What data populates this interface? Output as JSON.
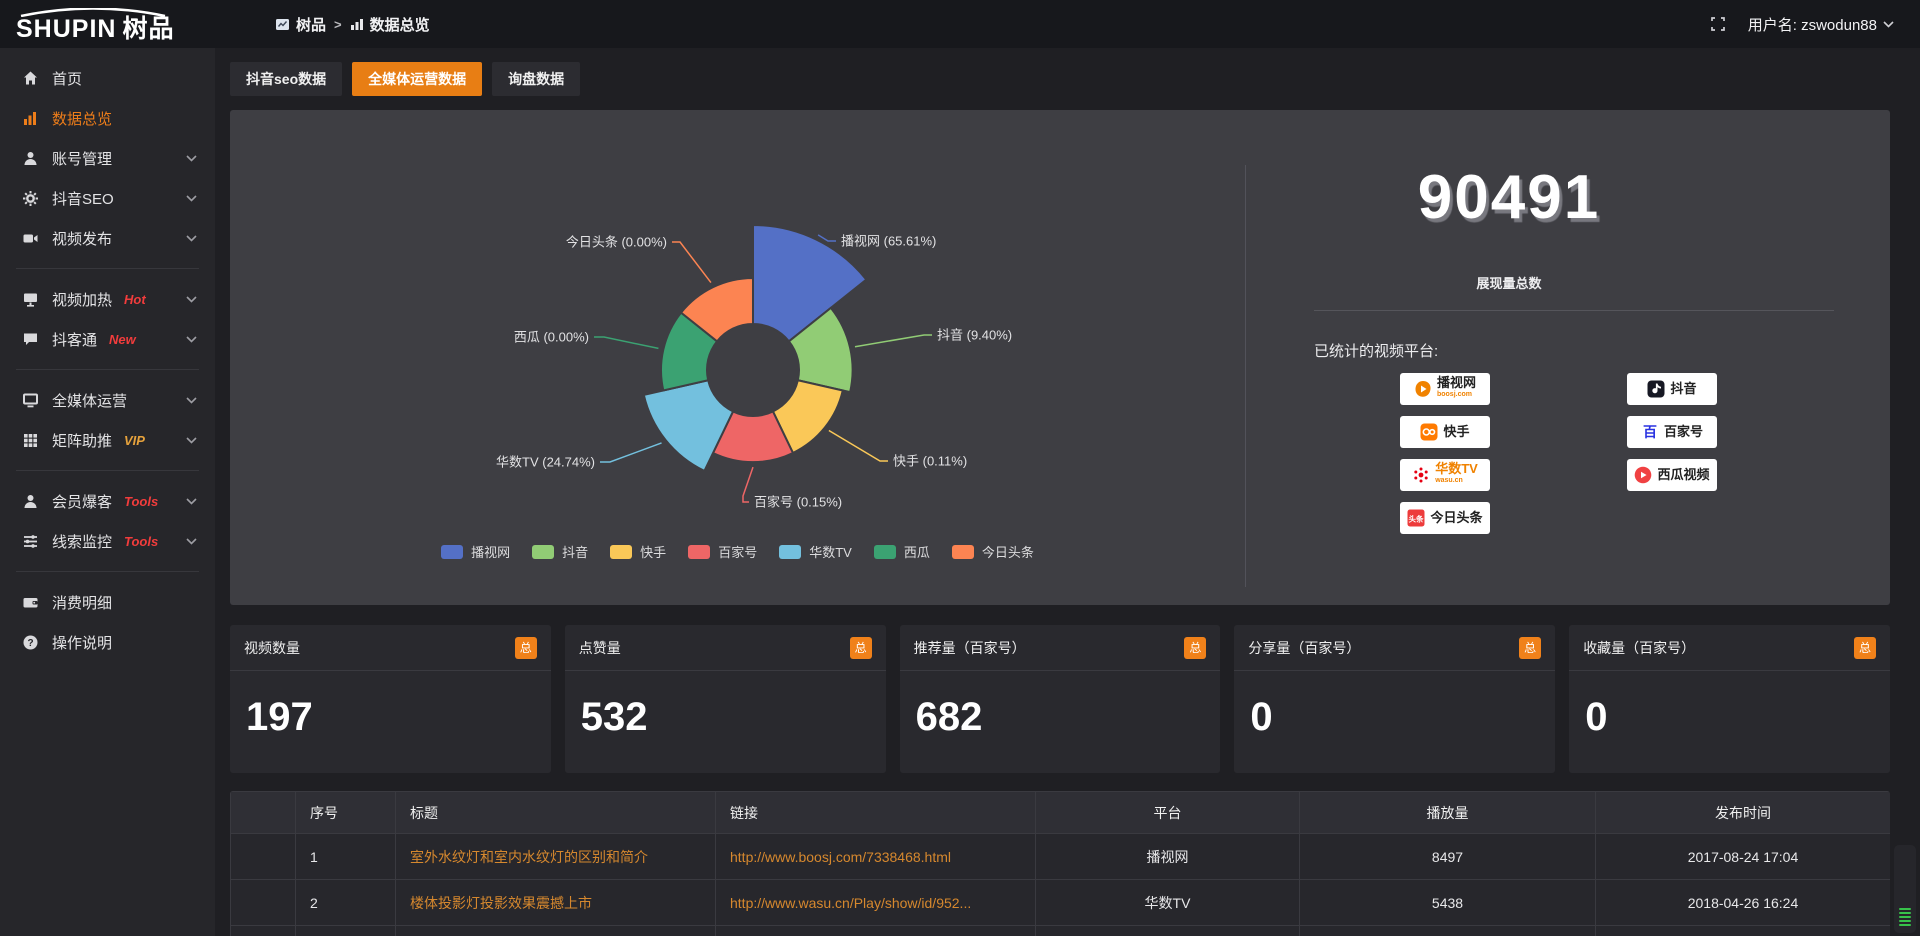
{
  "topbar": {
    "logo_en": "SHUPIN",
    "logo_cn": "树品",
    "breadcrumb_root": "树品",
    "breadcrumb_sep": ">",
    "breadcrumb_current": "数据总览",
    "username_label": "用户名: zswodun88"
  },
  "sidebar": {
    "items": [
      {
        "label": "首页",
        "icon": "home-icon"
      },
      {
        "label": "数据总览",
        "icon": "chart-bars-icon",
        "active": true
      },
      {
        "label": "账号管理",
        "icon": "user-icon",
        "chevron": true
      },
      {
        "label": "抖音SEO",
        "icon": "gear-icon",
        "chevron": true
      },
      {
        "label": "视频发布",
        "icon": "video-icon",
        "chevron": true,
        "divider_after": true
      },
      {
        "label": "视频加热",
        "icon": "screen-icon",
        "tag": "Hot",
        "tag_color": "red",
        "chevron": true
      },
      {
        "label": "抖客通",
        "icon": "chat-icon",
        "tag": "New",
        "tag_color": "red",
        "chevron": true,
        "divider_after": true
      },
      {
        "label": "全媒体运营",
        "icon": "monitor-icon",
        "chevron": true
      },
      {
        "label": "矩阵助推",
        "icon": "grid-icon",
        "tag": "VIP",
        "tag_color": "orange",
        "chevron": true,
        "divider_after": true
      },
      {
        "label": "会员爆客",
        "icon": "member-icon",
        "tag": "Tools",
        "tag_color": "red",
        "chevron": true
      },
      {
        "label": "线索监控",
        "icon": "sliders-icon",
        "tag": "Tools",
        "tag_color": "red",
        "chevron": true,
        "divider_after": true
      },
      {
        "label": "消费明细",
        "icon": "wallet-icon"
      },
      {
        "label": "操作说明",
        "icon": "question-icon"
      }
    ]
  },
  "tabs": {
    "active_index": 1,
    "items": [
      "抖音seo数据",
      "全媒体运营数据",
      "询盘数据"
    ]
  },
  "chart_data": {
    "type": "pie",
    "subtype": "nightingale-rose",
    "label_format": "{name} ({percent})",
    "legend_position": "bottom",
    "series": [
      {
        "name": "播视网",
        "value": 65.61,
        "percent_label": "65.61%",
        "color": "#5470c6"
      },
      {
        "name": "抖音",
        "value": 9.4,
        "percent_label": "9.40%",
        "color": "#91cc75"
      },
      {
        "name": "快手",
        "value": 0.11,
        "percent_label": "0.11%",
        "color": "#fac858"
      },
      {
        "name": "百家号",
        "value": 0.15,
        "percent_label": "0.15%",
        "color": "#ee6666"
      },
      {
        "name": "华数TV",
        "value": 24.74,
        "percent_label": "24.74%",
        "color": "#73c0de"
      },
      {
        "name": "西瓜",
        "value": 0.0,
        "percent_label": "0.00%",
        "color": "#3ba272"
      },
      {
        "name": "今日头条",
        "value": 0.0,
        "percent_label": "0.00%",
        "color": "#fc8452"
      }
    ]
  },
  "summary": {
    "total": "90491",
    "total_label": "展现量总数",
    "platforms_label": "已统计的视频平台:",
    "platforms": [
      {
        "name": "播视网",
        "sub": "boosj.com",
        "icon": "play-blob",
        "icon_color": "#f08200",
        "name_color": "#222222"
      },
      {
        "name": "抖音",
        "icon": "music-note",
        "icon_color": "#161823",
        "name_color": "#222222"
      },
      {
        "name": "快手",
        "icon": "kuaishou",
        "icon_color": "#ff7a00",
        "name_color": "#222222"
      },
      {
        "name": "百家号",
        "icon": "baijia",
        "icon_color": "#2932e1",
        "name_color": "#222222"
      },
      {
        "name": "华数TV",
        "sub": "wasu.cn",
        "icon": "starburst",
        "icon_color": "#e60012",
        "name_color": "#f08200"
      },
      {
        "name": "西瓜视频",
        "icon": "circle-play",
        "icon_color": "#f04142",
        "name_color": "#222222"
      },
      {
        "name": "今日头条",
        "icon": "toutiao",
        "icon_color": "#ed3b3b",
        "name_color": "#222222"
      }
    ]
  },
  "cards": [
    {
      "title": "视频数量",
      "badge": "总",
      "value": "197"
    },
    {
      "title": "点赞量",
      "badge": "总",
      "value": "532"
    },
    {
      "title": "推荐量（百家号）",
      "badge": "总",
      "value": "682"
    },
    {
      "title": "分享量（百家号）",
      "badge": "总",
      "value": "0"
    },
    {
      "title": "收藏量（百家号）",
      "badge": "总",
      "value": "0"
    }
  ],
  "table": {
    "headers": [
      "序号",
      "标题",
      "链接",
      "平台",
      "播放量",
      "发布时间"
    ],
    "rows": [
      {
        "no": "1",
        "title": "室外水纹灯和室内水纹灯的区别和简介",
        "link": "http://www.boosj.com/7338468.html",
        "platform": "播视网",
        "views": "8497",
        "time": "2017-08-24 17:04"
      },
      {
        "no": "2",
        "title": "楼体投影灯投影效果震撼上市",
        "link": "http://www.wasu.cn/Play/show/id/952...",
        "platform": "华数TV",
        "views": "5438",
        "time": "2018-04-26 16:24"
      }
    ]
  }
}
